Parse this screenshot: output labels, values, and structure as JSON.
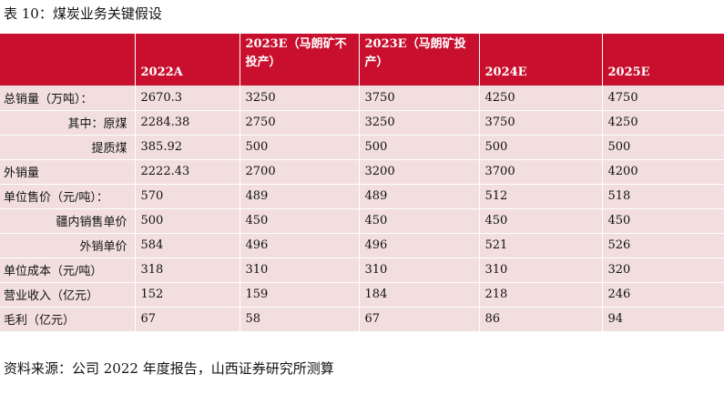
{
  "title": "表 10：煤炭业务关键假设",
  "source": "资料来源：公司 2022 年度报告，山西证券研究所测算",
  "columns": [
    "",
    "2022A",
    "2023E（马朗矿不投产）",
    "2023E（马朗矿投产）",
    "2024E",
    "2025E"
  ],
  "rows": [
    {
      "label": "总销量（万吨）：",
      "indent": false,
      "values": [
        "2670.3",
        "3250",
        "3750",
        "4250",
        "4750"
      ]
    },
    {
      "label": "其中：原煤",
      "indent": true,
      "values": [
        "2284.38",
        "2750",
        "3250",
        "3750",
        "4250"
      ]
    },
    {
      "label": "提质煤",
      "indent": true,
      "values": [
        "385.92",
        "500",
        "500",
        "500",
        "500"
      ]
    },
    {
      "label": "外销量",
      "indent": false,
      "values": [
        "2222.43",
        "2700",
        "3200",
        "3700",
        "4200"
      ]
    },
    {
      "label": "单位售价（元/吨）：",
      "indent": false,
      "values": [
        "570",
        "489",
        "489",
        "512",
        "518"
      ]
    },
    {
      "label": "疆内销售单价",
      "indent": true,
      "values": [
        "500",
        "450",
        "450",
        "450",
        "450"
      ]
    },
    {
      "label": "外销单价",
      "indent": true,
      "values": [
        "584",
        "496",
        "496",
        "521",
        "526"
      ]
    },
    {
      "label": "单位成本（元/吨）",
      "indent": false,
      "values": [
        "318",
        "310",
        "310",
        "310",
        "320"
      ]
    },
    {
      "label": "营业收入（亿元）",
      "indent": false,
      "values": [
        "152",
        "159",
        "184",
        "218",
        "246"
      ]
    },
    {
      "label": "毛利（亿元）",
      "indent": false,
      "values": [
        "67",
        "58",
        "67",
        "86",
        "94"
      ]
    }
  ]
}
